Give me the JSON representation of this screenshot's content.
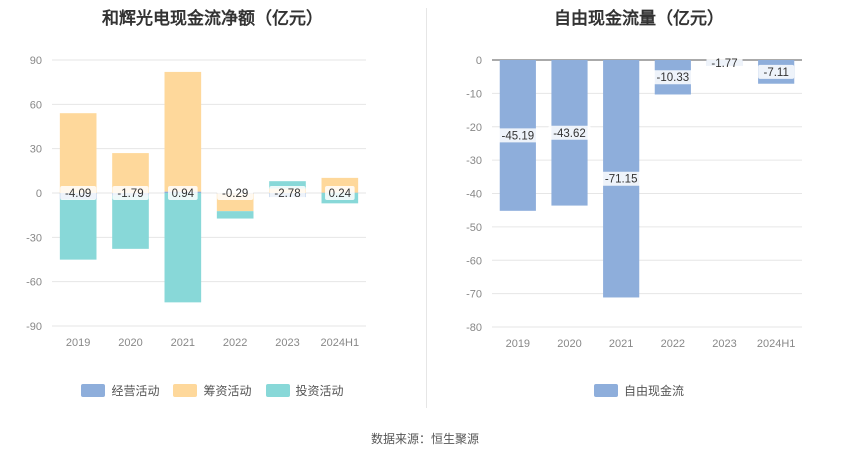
{
  "chart_data": [
    {
      "type": "bar",
      "stacked": true,
      "title": "和辉光电现金流净额（亿元）",
      "categories": [
        "2019",
        "2020",
        "2021",
        "2022",
        "2023",
        "2024H1"
      ],
      "ylim": [
        -90,
        90
      ],
      "yticks": [
        90,
        60,
        30,
        0,
        -30,
        -60,
        -90
      ],
      "grid": true,
      "legend_position": "bottom",
      "series": [
        {
          "name": "经营活动",
          "color": "#8eaedb",
          "values": [
            -4.09,
            -1.79,
            0.94,
            -0.29,
            -2.78,
            0.24
          ]
        },
        {
          "name": "筹资活动",
          "color": "#fed89b",
          "values": [
            54,
            27,
            81,
            -12,
            3,
            10
          ]
        },
        {
          "name": "投资活动",
          "color": "#88d8d8",
          "values": [
            -41,
            -36,
            -74,
            -5,
            5,
            -7
          ]
        }
      ],
      "data_labels": [
        "-4.09",
        "-1.79",
        "0.94",
        "-0.29",
        "-2.78",
        "0.24"
      ]
    },
    {
      "type": "bar",
      "title": "自由现金流量（亿元）",
      "categories": [
        "2019",
        "2020",
        "2021",
        "2022",
        "2023",
        "2024H1"
      ],
      "ylim": [
        -80,
        0
      ],
      "yticks": [
        0,
        -10,
        -20,
        -30,
        -40,
        -50,
        -60,
        -70,
        -80
      ],
      "grid": true,
      "legend_position": "bottom",
      "series": [
        {
          "name": "自由现金流",
          "color": "#8eaedb",
          "values": [
            -45.19,
            -43.62,
            -71.15,
            -10.33,
            -1.77,
            -7.11
          ]
        }
      ],
      "data_labels": [
        "-45.19",
        "-43.62",
        "-71.15",
        "-10.33",
        "-1.77",
        "-7.11"
      ]
    }
  ],
  "footer": "数据来源：恒生聚源"
}
